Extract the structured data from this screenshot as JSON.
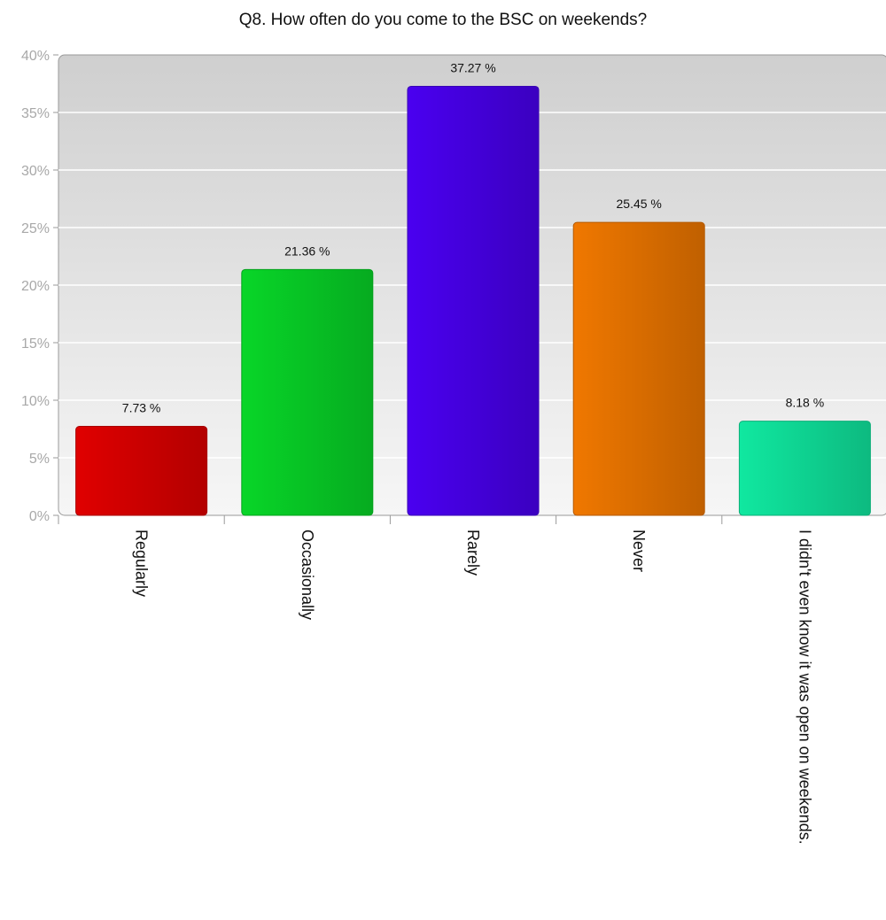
{
  "chart_data": {
    "type": "bar",
    "title": "Q8. How often do you come to the BSC on weekends?",
    "categories": [
      "Regularly",
      "Occasionally",
      "Rarely",
      "Never",
      "I didn't even know it was open on weekends."
    ],
    "values": [
      7.73,
      21.36,
      37.27,
      25.45,
      8.18
    ],
    "data_labels": [
      "7.73 %",
      "21.36 %",
      "37.27 %",
      "25.45 %",
      "8.18 %"
    ],
    "colors": [
      "#e00000",
      "#08d628",
      "#4a00f0",
      "#f07800",
      "#10e8a0"
    ],
    "ylim": [
      0,
      40
    ],
    "yticks": [
      0,
      5,
      10,
      15,
      20,
      25,
      30,
      35,
      40
    ],
    "ytick_labels": [
      "0%",
      "5%",
      "10%",
      "15%",
      "20%",
      "25%",
      "30%",
      "35%",
      "40%"
    ],
    "xlabel": "",
    "ylabel": "",
    "grid": true,
    "legend": "none"
  }
}
